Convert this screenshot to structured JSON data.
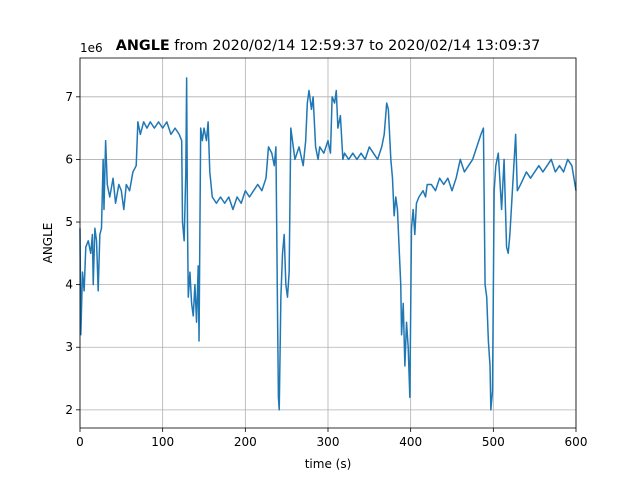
{
  "chart_data": {
    "type": "line",
    "title_bold": "ANGLE",
    "title": "from 2020/02/14 12:59:37 to 2020/02/14 13:09:37",
    "y_offset_label": "1e6",
    "xlabel": "time (s)",
    "ylabel": "ANGLE",
    "xlim": [
      0,
      600
    ],
    "xticks": [
      0,
      100,
      200,
      300,
      400,
      500,
      600
    ],
    "ylim": [
      1.71,
      7.62
    ],
    "yticks": [
      2,
      3,
      4,
      5,
      6,
      7
    ],
    "grid": true,
    "series": [
      {
        "color": "#1f77b4",
        "x": [
          0,
          1,
          3,
          5,
          7,
          10,
          13,
          15,
          16,
          18,
          20,
          22,
          24,
          26,
          28,
          29,
          31,
          33,
          36,
          40,
          43,
          47,
          50,
          53,
          56,
          60,
          64,
          68,
          70,
          73,
          77,
          81,
          85,
          90,
          95,
          100,
          105,
          110,
          115,
          120,
          123,
          124,
          126,
          128,
          129,
          130,
          131,
          133,
          135,
          137,
          139,
          141,
          143,
          144,
          146,
          148,
          150,
          153,
          155,
          157,
          160,
          165,
          170,
          175,
          180,
          185,
          190,
          195,
          200,
          205,
          210,
          215,
          220,
          225,
          228,
          232,
          235,
          237,
          239,
          240,
          241,
          243,
          245,
          247,
          249,
          251,
          253,
          255,
          258,
          260,
          265,
          270,
          273,
          275,
          277,
          280,
          282,
          285,
          288,
          290,
          295,
          300,
          303,
          305,
          308,
          310,
          312,
          315,
          318,
          320,
          325,
          330,
          335,
          340,
          345,
          350,
          355,
          360,
          365,
          368,
          371,
          373,
          376,
          378,
          380,
          382,
          384,
          386,
          388,
          389,
          391,
          393,
          395,
          397,
          399,
          401,
          403,
          405,
          407,
          410,
          415,
          418,
          420,
          425,
          430,
          435,
          440,
          445,
          450,
          455,
          460,
          465,
          470,
          475,
          480,
          485,
          488,
          490,
          492,
          494,
          496,
          497,
          499,
          501,
          503,
          506,
          510,
          513,
          516,
          518,
          520,
          527,
          529,
          533,
          540,
          545,
          550,
          555,
          560,
          565,
          570,
          575,
          580,
          585,
          590,
          595,
          600
        ],
        "values": [
          4.9,
          3.2,
          4.2,
          3.9,
          4.6,
          4.7,
          4.5,
          4.8,
          4.0,
          4.9,
          4.7,
          3.9,
          4.8,
          4.9,
          6.0,
          5.2,
          6.3,
          5.6,
          5.4,
          5.7,
          5.3,
          5.6,
          5.5,
          5.2,
          5.6,
          5.5,
          5.8,
          5.9,
          6.6,
          6.4,
          6.6,
          6.5,
          6.6,
          6.5,
          6.6,
          6.5,
          6.6,
          6.4,
          6.5,
          6.4,
          6.3,
          5.0,
          4.7,
          5.8,
          7.3,
          5.0,
          3.8,
          4.2,
          3.7,
          3.5,
          4.0,
          3.4,
          4.3,
          3.1,
          6.5,
          6.3,
          6.5,
          6.3,
          6.6,
          5.8,
          5.4,
          5.3,
          5.4,
          5.3,
          5.4,
          5.2,
          5.4,
          5.3,
          5.5,
          5.4,
          5.5,
          5.6,
          5.5,
          5.7,
          6.2,
          6.1,
          5.9,
          6.2,
          3.5,
          2.2,
          2.0,
          3.8,
          4.5,
          4.8,
          4.0,
          3.8,
          4.2,
          6.5,
          6.2,
          6.0,
          6.2,
          5.9,
          6.3,
          6.9,
          7.1,
          6.8,
          7.0,
          6.2,
          6.0,
          6.2,
          6.1,
          6.3,
          6.1,
          7.0,
          6.9,
          7.1,
          6.5,
          6.7,
          6.0,
          6.1,
          6.0,
          6.1,
          6.0,
          6.1,
          6.0,
          6.2,
          6.1,
          6.0,
          6.2,
          6.4,
          6.9,
          6.8,
          6.0,
          5.7,
          5.1,
          5.4,
          5.2,
          4.6,
          4.0,
          3.2,
          3.7,
          2.7,
          3.4,
          3.0,
          2.2,
          4.9,
          5.2,
          4.8,
          5.3,
          5.4,
          5.5,
          5.4,
          5.6,
          5.6,
          5.5,
          5.7,
          5.6,
          5.7,
          5.5,
          5.7,
          6.0,
          5.8,
          5.9,
          6.0,
          6.2,
          6.4,
          6.5,
          4.0,
          3.8,
          3.1,
          2.7,
          2.0,
          2.3,
          5.5,
          5.9,
          6.1,
          5.2,
          6.0,
          4.6,
          4.5,
          4.8,
          6.4,
          5.5,
          5.6,
          5.8,
          5.7,
          5.8,
          5.9,
          5.8,
          5.9,
          6.0,
          5.8,
          5.9,
          5.8,
          6.0,
          5.9,
          5.5
        ]
      }
    ]
  }
}
